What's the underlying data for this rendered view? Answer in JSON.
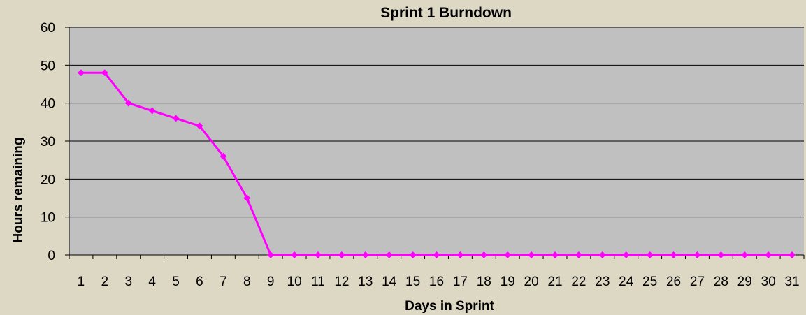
{
  "chart_data": {
    "type": "line",
    "title": "Sprint 1 Burndown",
    "xlabel": "Days in Sprint",
    "ylabel": "Hours remaining",
    "x": [
      1,
      2,
      3,
      4,
      5,
      6,
      7,
      8,
      9,
      10,
      11,
      12,
      13,
      14,
      15,
      16,
      17,
      18,
      19,
      20,
      21,
      22,
      23,
      24,
      25,
      26,
      27,
      28,
      29,
      30,
      31
    ],
    "series": [
      {
        "values": [
          48,
          48,
          40,
          38,
          36,
          34,
          26,
          15,
          0,
          0,
          0,
          0,
          0,
          0,
          0,
          0,
          0,
          0,
          0,
          0,
          0,
          0,
          0,
          0,
          0,
          0,
          0,
          0,
          0,
          0,
          0
        ],
        "color": "#ff00ff",
        "marker": "diamond"
      }
    ],
    "ylim": [
      0,
      60
    ],
    "yticks": [
      0,
      10,
      20,
      30,
      40,
      50,
      60
    ],
    "grid": "horizontal",
    "plot_background": "#c0c0c0",
    "page_background": "#ddd8c4"
  }
}
